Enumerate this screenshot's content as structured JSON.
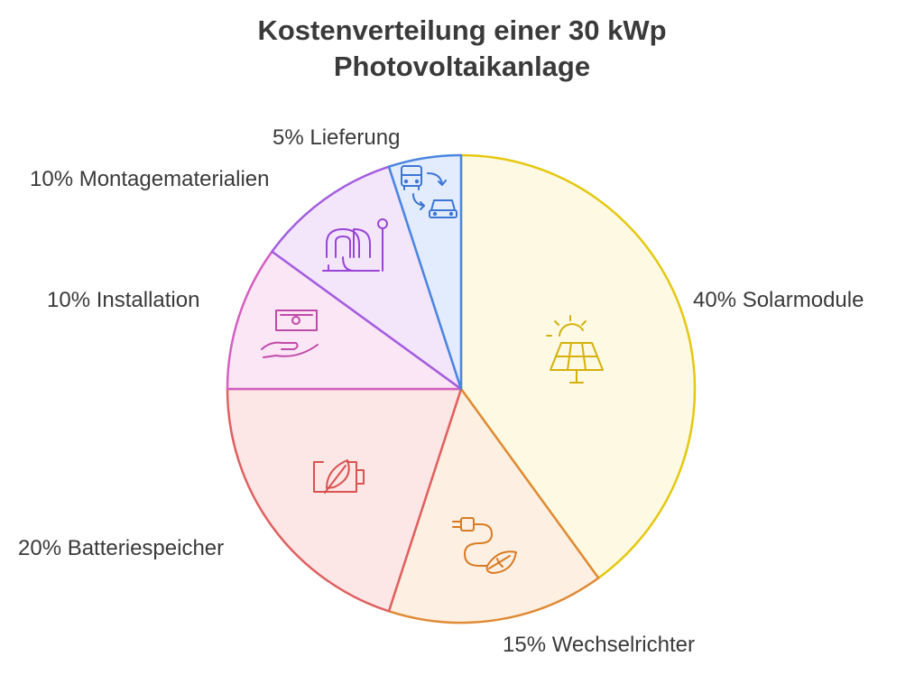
{
  "title_line1": "Kostenverteilung einer 30 kWp",
  "title_line2": "Photovoltaikanlage",
  "chart_data": {
    "type": "pie",
    "title": "Kostenverteilung einer 30 kWp Photovoltaikanlage",
    "start_angle_deg": 0,
    "direction": "clockwise",
    "slices": [
      {
        "label": "40% Solarmodule",
        "category": "Solarmodule",
        "value": 40,
        "fill": "#fef9e3",
        "stroke": "#e5c80f",
        "icon": "solar-panel-icon"
      },
      {
        "label": "15% Wechselrichter",
        "category": "Wechselrichter",
        "value": 15,
        "fill": "#fdf0e3",
        "stroke": "#e08a35",
        "icon": "plug-leaf-icon"
      },
      {
        "label": "20% Batteriespeicher",
        "category": "Batteriespeicher",
        "value": 20,
        "fill": "#fde6e6",
        "stroke": "#e06060",
        "icon": "eco-battery-icon"
      },
      {
        "label": "10% Installation",
        "category": "Installation",
        "value": 10,
        "fill": "#fbe6f5",
        "stroke": "#d45fc0",
        "icon": "money-hand-icon"
      },
      {
        "label": "10% Montagematerialien",
        "category": "Montagematerialien",
        "value": 10,
        "fill": "#f3e6fb",
        "stroke": "#a35de0",
        "icon": "mounting-hardware-icon"
      },
      {
        "label": "5% Lieferung",
        "category": "Lieferung",
        "value": 5,
        "fill": "#e3ecfd",
        "stroke": "#4a86e0",
        "icon": "delivery-vehicles-icon"
      }
    ]
  }
}
